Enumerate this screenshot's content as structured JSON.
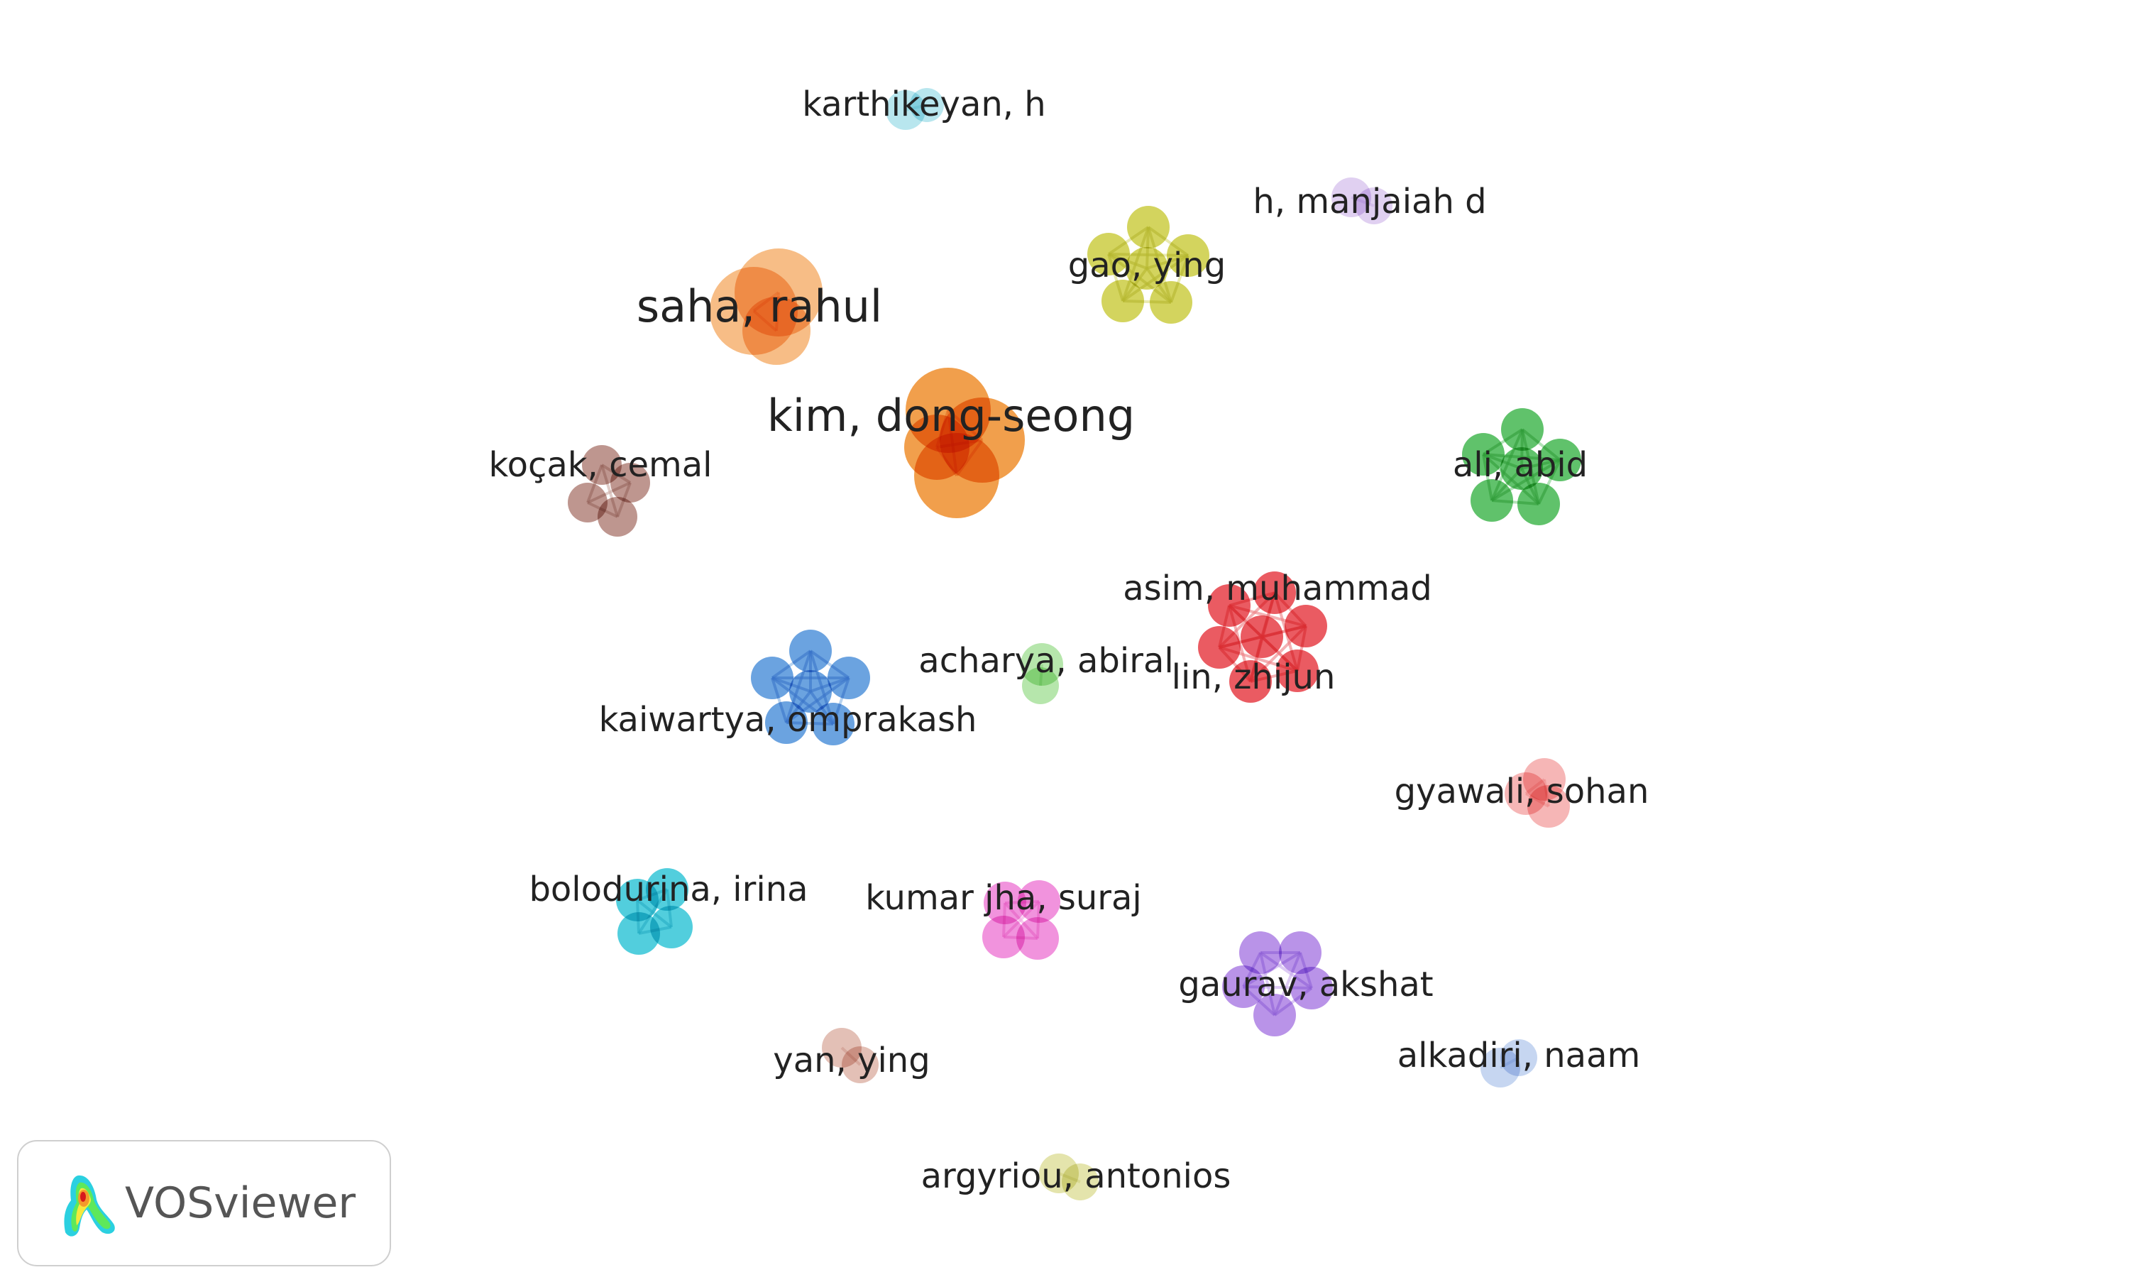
{
  "brand": {
    "name": "VOSviewer",
    "logo_icon": "vosviewer-heatmap-logo-icon"
  },
  "clusters": [
    {
      "id": "saha",
      "label": "saha, rahul",
      "color": "#F5AE6B",
      "weight": "large"
    },
    {
      "id": "kim",
      "label": "kim, dong-seong",
      "color": "#EE8A24",
      "weight": "large"
    },
    {
      "id": "karthikeyan",
      "label": "karthikeyan, h",
      "color": "#A8E1EA",
      "weight": "small"
    },
    {
      "id": "manjaiah",
      "label": "h, manjaiah d",
      "color": "#D9C6EE",
      "weight": "small"
    },
    {
      "id": "gao",
      "label": "gao, ying",
      "color": "#C9CB3A",
      "weight": "medium"
    },
    {
      "id": "kocak",
      "label": "koçak, cemal",
      "color": "#B07F76",
      "weight": "medium"
    },
    {
      "id": "ali",
      "label": "ali, abid",
      "color": "#3DB54A",
      "weight": "medium"
    },
    {
      "id": "asim",
      "label": "asim, muhammad",
      "color": "#E5373F",
      "weight": "medium"
    },
    {
      "id": "lin",
      "label": "lin, zhijun",
      "color": "#E5373F",
      "weight": "medium"
    },
    {
      "id": "acharya",
      "label": "acharya, abiral",
      "color": "#A6E09A",
      "weight": "small"
    },
    {
      "id": "kaiwartya",
      "label": "kaiwartya, omprakash",
      "color": "#4A8FD9",
      "weight": "medium"
    },
    {
      "id": "gyawali",
      "label": "gyawali, sohan",
      "color": "#F4A6A6",
      "weight": "small"
    },
    {
      "id": "bolodurina",
      "label": "bolodurina, irina",
      "color": "#2CC3D6",
      "weight": "medium"
    },
    {
      "id": "kumarjha",
      "label": "kumar jha, suraj",
      "color": "#EE7BD6",
      "weight": "medium"
    },
    {
      "id": "gaurav",
      "label": "gaurav, akshat",
      "color": "#A97BE3",
      "weight": "medium"
    },
    {
      "id": "yan",
      "label": "yan, ying",
      "color": "#DDB2A6",
      "weight": "small"
    },
    {
      "id": "alkadiri",
      "label": "alkadiri, naam",
      "color": "#B9CDEE",
      "weight": "small"
    },
    {
      "id": "argyriou",
      "label": "argyriou, antonios",
      "color": "#DEDE9A",
      "weight": "small"
    }
  ]
}
